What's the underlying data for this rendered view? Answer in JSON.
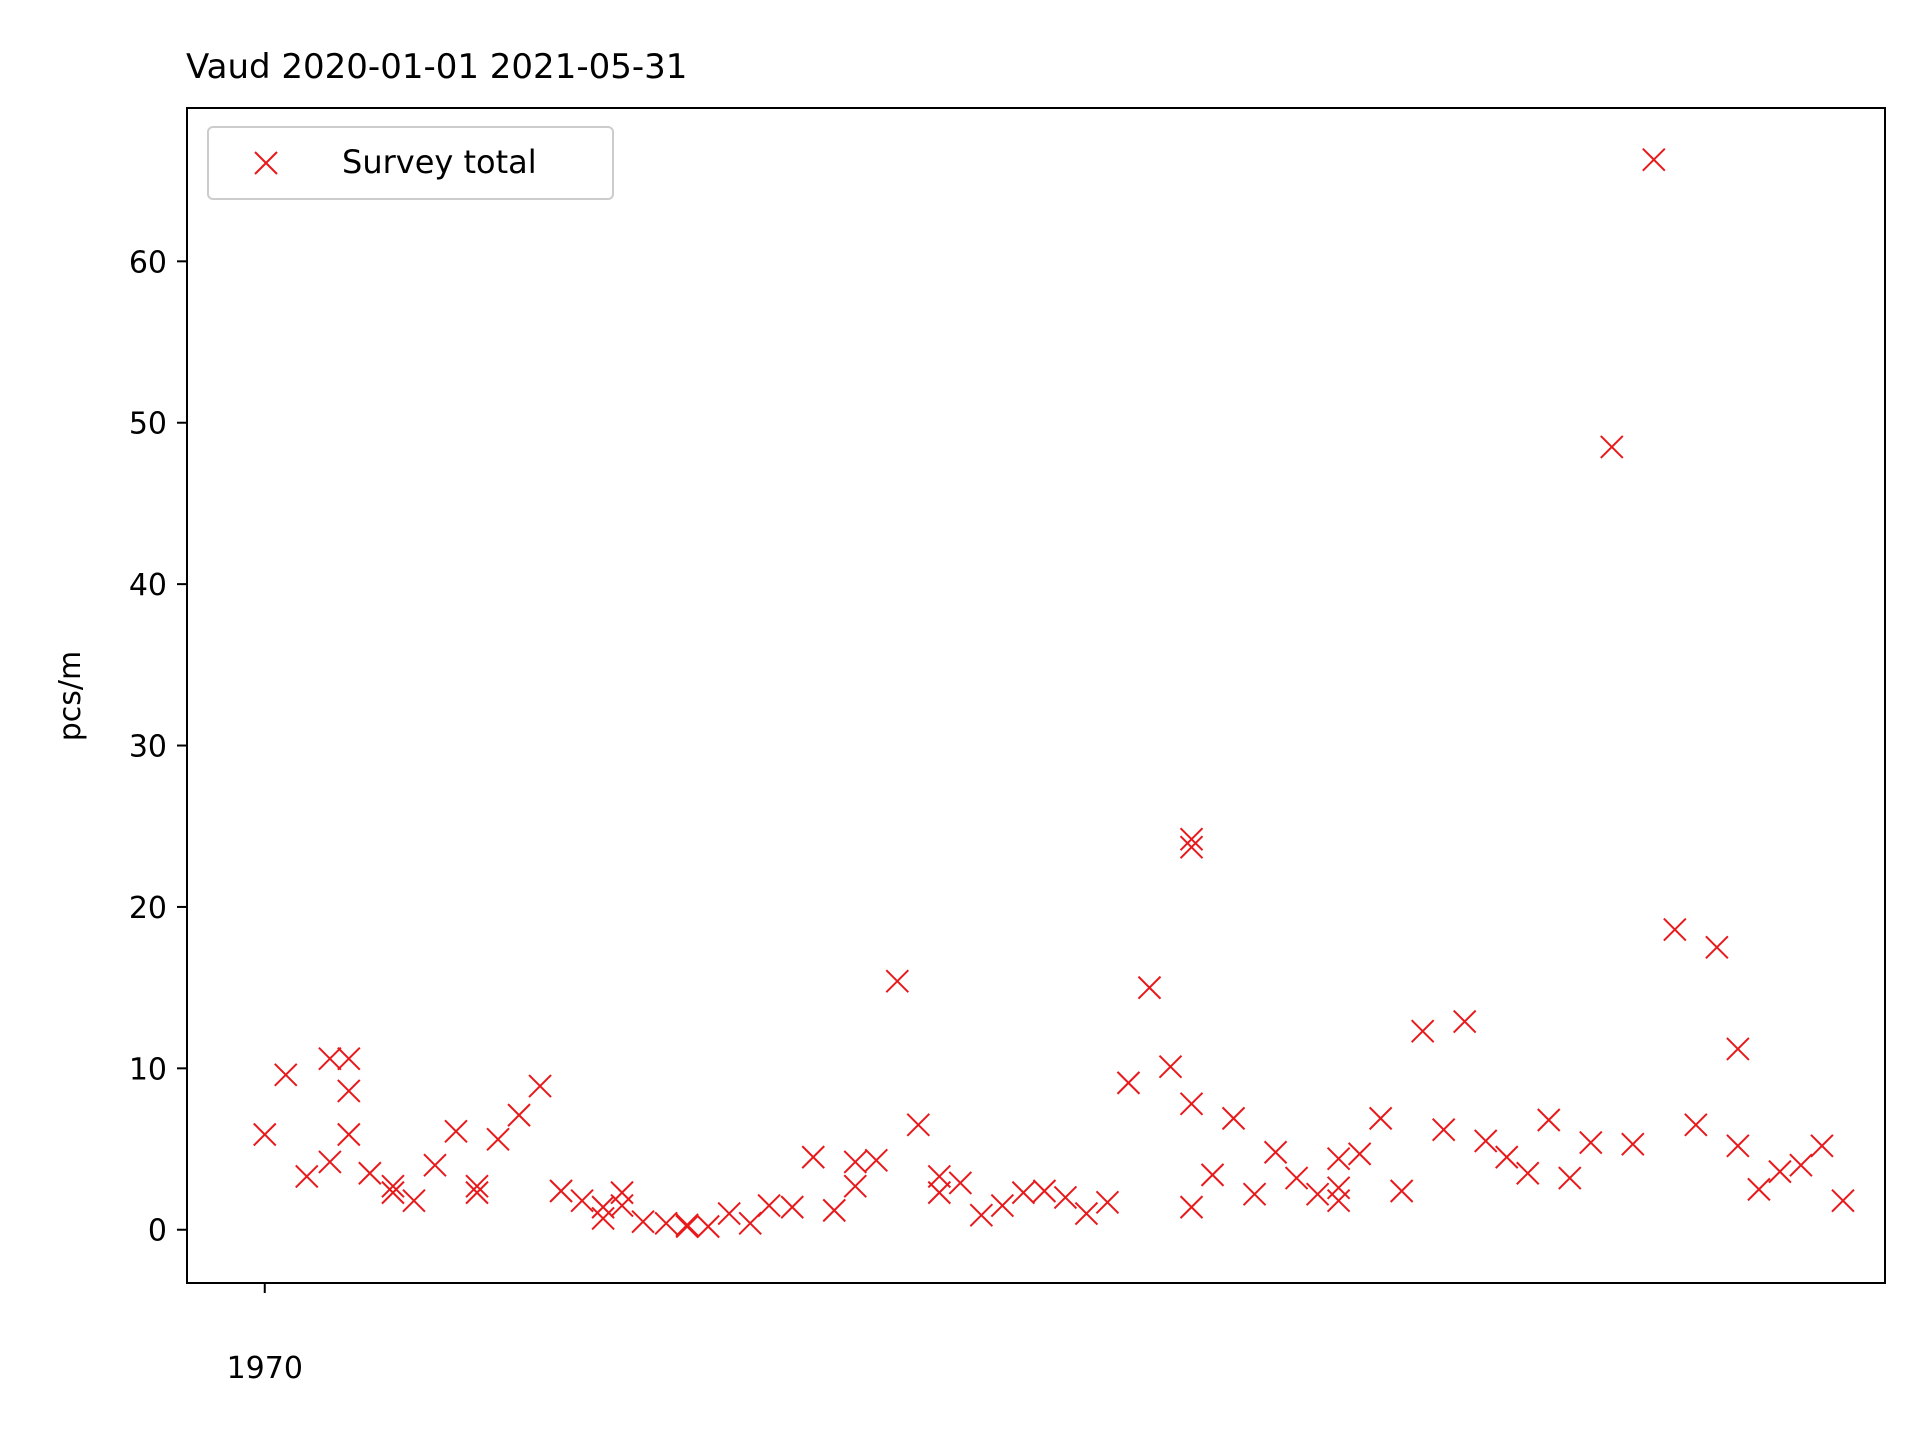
{
  "chart_data": {
    "type": "scatter",
    "title": "Vaud 2020-01-01 2021-05-31",
    "xlabel": "",
    "ylabel": "pcs/m",
    "ylim": [
      -3.3,
      69.5
    ],
    "xlim": [
      -0.0037,
      0.0771
    ],
    "yticks": [
      0,
      10,
      20,
      30,
      40,
      50,
      60
    ],
    "xticks": [
      {
        "value": 0,
        "label": "1970"
      }
    ],
    "grid": false,
    "legend": "upper left",
    "series": [
      {
        "name": "Survey total",
        "marker": "x",
        "color": "#e8191b",
        "x": [
          0.0,
          0.001,
          0.002,
          0.0031,
          0.0031,
          0.004,
          0.004,
          0.004,
          0.005,
          0.0061,
          0.0061,
          0.0071,
          0.0081,
          0.0091,
          0.0101,
          0.0101,
          0.0111,
          0.0121,
          0.0131,
          0.0141,
          0.0151,
          0.0161,
          0.0161,
          0.017,
          0.017,
          0.018,
          0.0191,
          0.0201,
          0.0201,
          0.0211,
          0.0221,
          0.0231,
          0.024,
          0.0251,
          0.0261,
          0.0271,
          0.0281,
          0.0281,
          0.0291,
          0.0301,
          0.0311,
          0.0321,
          0.0321,
          0.0331,
          0.0341,
          0.0351,
          0.0361,
          0.0371,
          0.0381,
          0.0391,
          0.0401,
          0.0411,
          0.0421,
          0.0431,
          0.0441,
          0.0441,
          0.0441,
          0.0441,
          0.0451,
          0.0461,
          0.0471,
          0.0481,
          0.0491,
          0.0501,
          0.0511,
          0.0511,
          0.0511,
          0.0521,
          0.0531,
          0.0541,
          0.0551,
          0.0561,
          0.0571,
          0.0581,
          0.0591,
          0.0601,
          0.0611,
          0.0621,
          0.0631,
          0.0641,
          0.0651,
          0.0661,
          0.0671,
          0.0681,
          0.0691,
          0.0701,
          0.0701,
          0.0711,
          0.0721,
          0.0731,
          0.0741,
          0.0751
        ],
        "y": [
          5.9,
          9.6,
          3.3,
          10.6,
          4.2,
          10.6,
          5.9,
          8.6,
          3.5,
          2.3,
          2.7,
          1.8,
          4.0,
          6.1,
          2.7,
          2.3,
          5.6,
          7.1,
          8.9,
          2.4,
          1.8,
          1.4,
          0.7,
          2.3,
          1.5,
          0.5,
          0.4,
          0.2,
          0.3,
          0.2,
          1.0,
          0.4,
          1.5,
          1.4,
          4.5,
          1.2,
          4.2,
          2.7,
          4.3,
          15.4,
          6.5,
          2.3,
          3.3,
          2.9,
          0.9,
          1.5,
          2.3,
          2.4,
          2.0,
          1.0,
          1.7,
          9.1,
          15.0,
          10.1,
          7.8,
          1.4,
          24.2,
          23.7,
          3.4,
          6.9,
          2.2,
          4.8,
          3.2,
          2.2,
          4.4,
          2.6,
          1.8,
          4.7,
          6.9,
          2.4,
          12.3,
          6.2,
          12.9,
          5.5,
          4.5,
          3.5,
          6.8,
          3.2,
          5.4,
          48.5,
          5.3,
          66.3,
          18.6,
          6.5,
          17.5,
          11.2,
          5.2,
          2.5,
          3.6,
          4.0,
          5.2,
          1.8
        ]
      }
    ]
  }
}
